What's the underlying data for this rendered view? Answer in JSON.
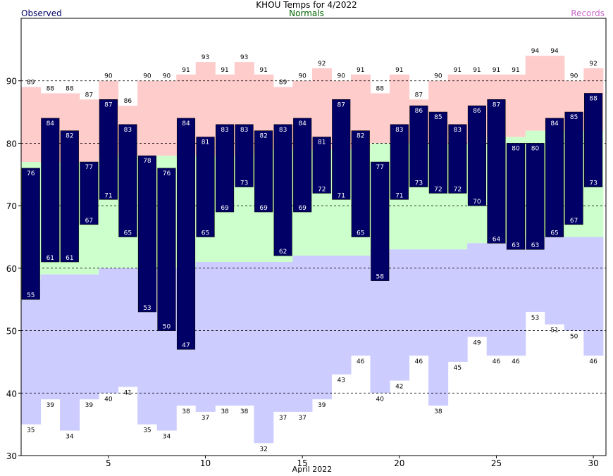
{
  "header": {
    "title": "KHOU Temps for 4/2022",
    "observed_label": "Observed",
    "normals_label": "Normals",
    "records_label": "Records"
  },
  "colors": {
    "observed_bar": "#000066",
    "record_band": "#ffcccc",
    "normal_band": "#ccffcc",
    "low_band": "#ccccff",
    "observed_text": "#000066",
    "normals_text": "#006600",
    "records_text": "#cc66cc"
  },
  "chart_data": {
    "type": "bar",
    "title": "KHOU Temps for 4/2022",
    "xlabel": "April 2022",
    "ylabel": "",
    "ylim": [
      30,
      100
    ],
    "y_ticks": [
      30,
      40,
      50,
      60,
      70,
      80,
      90
    ],
    "x_ticks": [
      5,
      10,
      15,
      20,
      25,
      30
    ],
    "grid": "dashed horizontal at 40, 50, 60, 70, 80, 90",
    "days": [
      1,
      2,
      3,
      4,
      5,
      6,
      7,
      8,
      9,
      10,
      11,
      12,
      13,
      14,
      15,
      16,
      17,
      18,
      19,
      20,
      21,
      22,
      23,
      24,
      25,
      26,
      27,
      28,
      29,
      30
    ],
    "series": [
      {
        "name": "Observed",
        "kind": "high",
        "values": [
          76,
          84,
          82,
          77,
          87,
          83,
          78,
          76,
          84,
          81,
          83,
          83,
          82,
          83,
          84,
          81,
          87,
          82,
          77,
          83,
          86,
          85,
          83,
          86,
          87,
          80,
          80,
          84,
          85,
          88
        ]
      },
      {
        "name": "Observed",
        "kind": "low",
        "values": [
          55,
          61,
          61,
          67,
          71,
          65,
          53,
          50,
          47,
          65,
          69,
          73,
          69,
          62,
          69,
          72,
          71,
          65,
          58,
          71,
          73,
          72,
          72,
          70,
          64,
          63,
          63,
          65,
          67,
          73
        ]
      },
      {
        "name": "Normals",
        "kind": "high",
        "values": [
          77,
          77,
          77,
          77,
          78,
          78,
          78,
          78,
          78,
          78,
          78,
          78,
          79,
          79,
          79,
          79,
          79,
          79,
          80,
          80,
          80,
          80,
          80,
          80,
          81,
          81,
          82,
          82,
          82,
          82
        ]
      },
      {
        "name": "Normals",
        "kind": "low",
        "values": [
          58,
          59,
          59,
          59,
          60,
          60,
          60,
          60,
          60,
          61,
          61,
          61,
          61,
          61,
          62,
          62,
          62,
          62,
          63,
          63,
          63,
          63,
          63,
          64,
          64,
          64,
          65,
          65,
          65,
          65
        ]
      },
      {
        "name": "Records",
        "kind": "high",
        "values": [
          89,
          88,
          88,
          87,
          90,
          86,
          90,
          90,
          91,
          93,
          91,
          93,
          91,
          89,
          90,
          92,
          90,
          91,
          88,
          91,
          87,
          90,
          91,
          91,
          91,
          91,
          94,
          94,
          90,
          92
        ]
      },
      {
        "name": "Records",
        "kind": "low",
        "values": [
          35,
          39,
          34,
          39,
          40,
          41,
          35,
          34,
          38,
          37,
          38,
          38,
          32,
          37,
          37,
          39,
          43,
          46,
          40,
          42,
          46,
          38,
          45,
          49,
          46,
          46,
          53,
          51,
          50,
          46
        ]
      }
    ]
  }
}
